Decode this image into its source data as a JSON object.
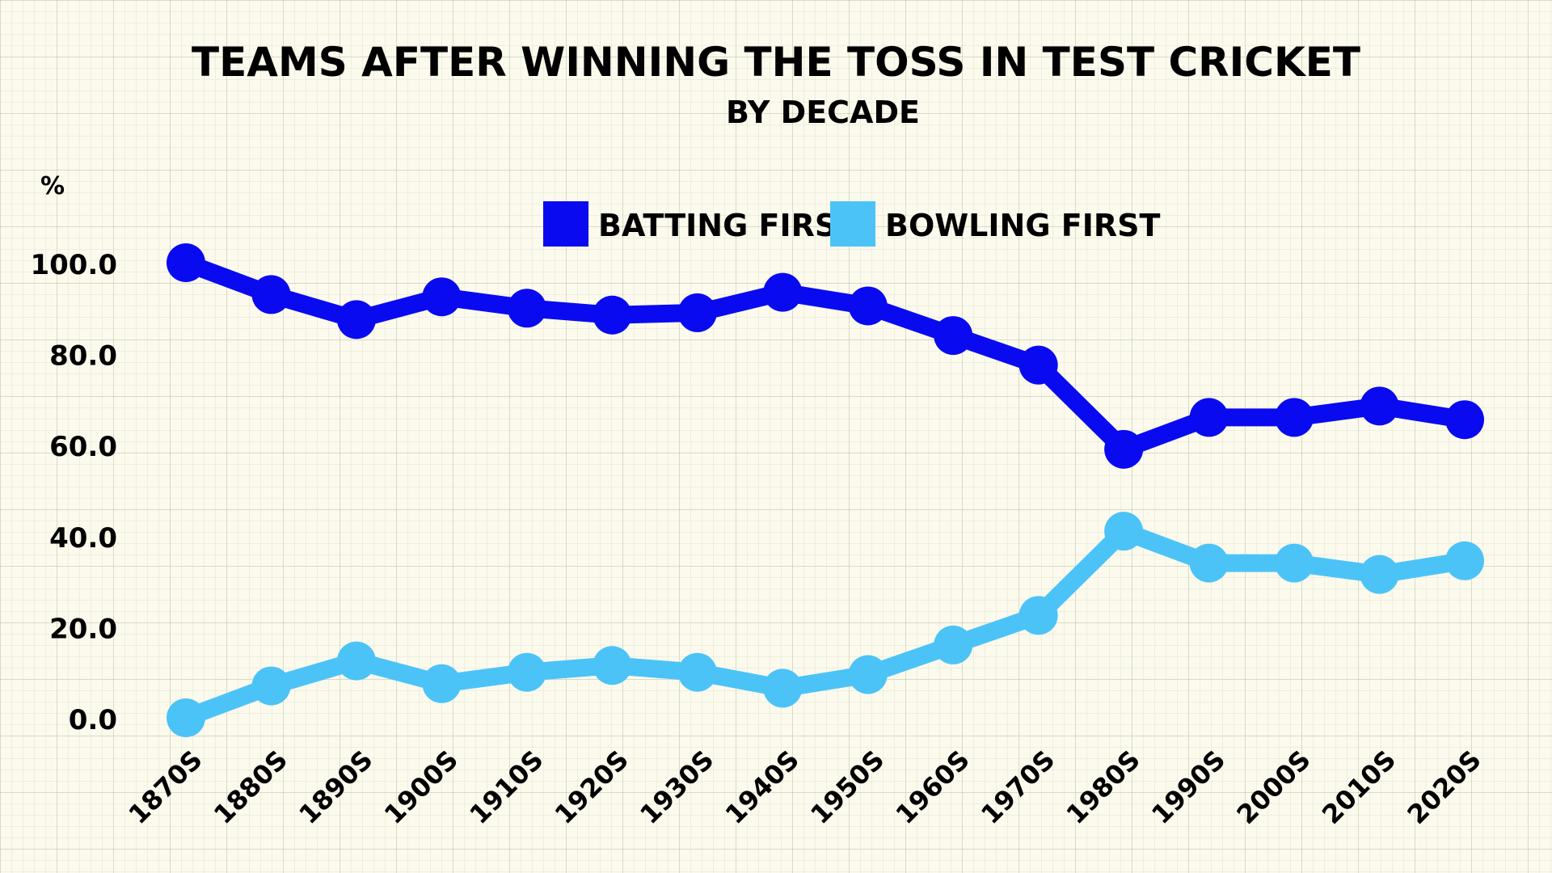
{
  "chart_data": {
    "type": "line",
    "title": "TEAMS AFTER WINNING THE TOSS IN TEST CRICKET",
    "subtitle": "BY DECADE",
    "ylabel": "%",
    "xlabel": "",
    "ylim": [
      0,
      100
    ],
    "yticks": [
      "0.0",
      "20.0",
      "40.0",
      "60.0",
      "80.0",
      "100.0"
    ],
    "categories": [
      "1870S",
      "1880S",
      "1890S",
      "1900S",
      "1910S",
      "1920S",
      "1930S",
      "1940S",
      "1950S",
      "1960S",
      "1970S",
      "1980S",
      "1990S",
      "2000S",
      "2010S",
      "2020S"
    ],
    "series": [
      {
        "name": "BATTING FIRST",
        "color": "#0a0af0",
        "values": [
          100.0,
          93.0,
          87.5,
          92.5,
          90.0,
          88.5,
          89.0,
          93.5,
          90.5,
          84.0,
          77.5,
          59.0,
          66.0,
          66.0,
          68.5,
          65.5
        ]
      },
      {
        "name": "BOWLING FIRST",
        "color": "#4cc3f7",
        "values": [
          0.0,
          7.0,
          12.5,
          7.5,
          10.0,
          11.5,
          10.0,
          6.5,
          9.5,
          16.0,
          22.5,
          41.0,
          34.0,
          34.0,
          31.5,
          34.5
        ]
      }
    ],
    "legend": "top-center",
    "grid": true
  }
}
